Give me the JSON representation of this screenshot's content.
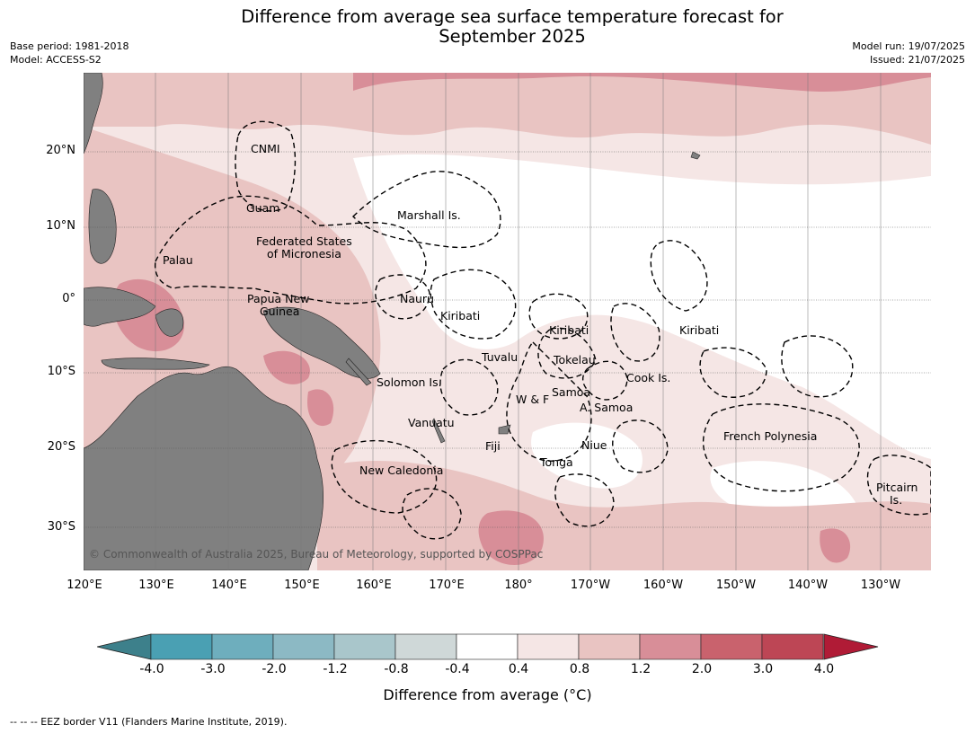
{
  "title_line1": "Difference from average sea surface temperature forecast for",
  "title_line2": "September 2025",
  "meta_left": [
    "Base period: 1981-2018",
    "Model: ACCESS-S2"
  ],
  "meta_right": [
    "Model run: 19/07/2025",
    "Issued: 21/07/2025"
  ],
  "lat_labels": [
    "20°N",
    "10°N",
    "0°",
    "10°S",
    "20°S",
    "30°S"
  ],
  "lon_labels": [
    "120°E",
    "130°E",
    "140°E",
    "150°E",
    "160°E",
    "170°E",
    "180°",
    "170°W",
    "160°W",
    "150°W",
    "140°W",
    "130°W"
  ],
  "places": [
    "CNMI",
    "Guam",
    "Marshall Is.",
    "Federated States",
    "of Micronesia",
    "Palau",
    "Nauru",
    "Papua New",
    "Guinea",
    "Kiribati",
    "Kiribati",
    "Kiribati",
    "Tuvalu",
    "Tokelau",
    "Cook Is.",
    "Solomon Is.",
    "W & F",
    "Samoa",
    "A. Samoa",
    "Vanuatu",
    "Fiji",
    "Niue",
    "Tonga",
    "French Polynesia",
    "New Caledonia",
    "Pitcairn",
    "Is."
  ],
  "credit": "© Commonwealth of Australia 2025, Bureau of Meteorology, supported by COSPPac",
  "colorbar": {
    "ticks": [
      "-4.0",
      "-3.0",
      "-2.0",
      "-1.2",
      "-0.8",
      "-0.4",
      "0.4",
      "0.8",
      "1.2",
      "2.0",
      "3.0",
      "4.0"
    ],
    "colors": [
      "#4aa0b3",
      "#6eaebd",
      "#8cb9c4",
      "#a9c6cb",
      "#cfd8d8",
      "#ffffff",
      "#f5e6e5",
      "#e9c4c2",
      "#d88e98",
      "#c9626d",
      "#bd4655"
    ],
    "under_color": "#3d808b",
    "over_color": "#b01b36",
    "label": "Difference from average (°C)"
  },
  "legend_footer": "--  --  -- EEZ border V11 (Flanders Marine Institute, 2019).",
  "colors": {
    "land": "#808080",
    "eez": "#000000"
  }
}
